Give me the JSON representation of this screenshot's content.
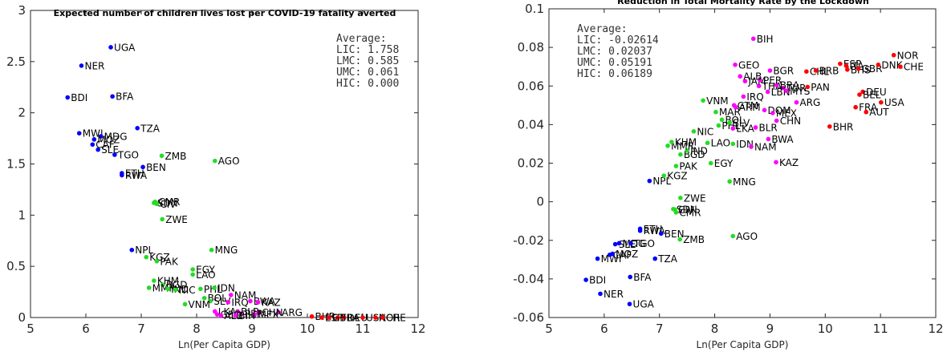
{
  "colors": {
    "LIC": "#0000ff",
    "LMC": "#22dd22",
    "UMC": "#ff00ff",
    "HIC": "#ff0000"
  },
  "chart_data": [
    {
      "type": "scatter",
      "title": "Expected number of children lives lost per COVID-19 fatality averted",
      "xlabel": "Ln(Per Capita GDP)",
      "ylabel": "",
      "xlim": [
        5,
        12
      ],
      "ylim": [
        0,
        3
      ],
      "xticks": [
        "5",
        "6",
        "7",
        "8",
        "9",
        "10",
        "11",
        "12"
      ],
      "yticks": [
        "0",
        "0.5",
        "1",
        "1.5",
        "2",
        "2.5",
        "3"
      ],
      "average": {
        "heading": "Average:",
        "lines": [
          "LIC: 1.758",
          "LMC: 0.585",
          "UMC: 0.061",
          "HIC: 0.000"
        ]
      },
      "points": [
        {
          "label": "UGA",
          "x": 6.45,
          "y": 2.64,
          "group": "LIC"
        },
        {
          "label": "NER",
          "x": 5.92,
          "y": 2.46,
          "group": "LIC"
        },
        {
          "label": "BDI",
          "x": 5.67,
          "y": 2.15,
          "group": "LIC"
        },
        {
          "label": "BFA",
          "x": 6.48,
          "y": 2.16,
          "group": "LIC"
        },
        {
          "label": "TZA",
          "x": 6.93,
          "y": 1.85,
          "group": "LIC"
        },
        {
          "label": "MWI",
          "x": 5.88,
          "y": 1.8,
          "group": "LIC"
        },
        {
          "label": "MDG",
          "x": 6.27,
          "y": 1.77,
          "group": "LIC"
        },
        {
          "label": "MOZ",
          "x": 6.15,
          "y": 1.74,
          "group": "LIC"
        },
        {
          "label": "CAF",
          "x": 6.12,
          "y": 1.69,
          "group": "LIC"
        },
        {
          "label": "SLE",
          "x": 6.22,
          "y": 1.64,
          "group": "LIC"
        },
        {
          "label": "TGO",
          "x": 6.52,
          "y": 1.59,
          "group": "LIC"
        },
        {
          "label": "BEN",
          "x": 7.03,
          "y": 1.47,
          "group": "LIC"
        },
        {
          "label": "ETH",
          "x": 6.65,
          "y": 1.41,
          "group": "LIC"
        },
        {
          "label": "RWA",
          "x": 6.65,
          "y": 1.39,
          "group": "LIC"
        },
        {
          "label": "NPL",
          "x": 6.83,
          "y": 0.66,
          "group": "LIC"
        },
        {
          "label": "ZMB",
          "x": 7.37,
          "y": 1.58,
          "group": "LMC"
        },
        {
          "label": "AGO",
          "x": 8.33,
          "y": 1.53,
          "group": "LMC"
        },
        {
          "label": "CMR",
          "x": 7.25,
          "y": 1.13,
          "group": "LMC"
        },
        {
          "label": "SDN",
          "x": 7.23,
          "y": 1.12,
          "group": "LMC"
        },
        {
          "label": "CIV",
          "x": 7.28,
          "y": 1.11,
          "group": "LMC"
        },
        {
          "label": "ZWE",
          "x": 7.38,
          "y": 0.96,
          "group": "LMC"
        },
        {
          "label": "MNG",
          "x": 8.27,
          "y": 0.66,
          "group": "LMC"
        },
        {
          "label": "KGZ",
          "x": 7.09,
          "y": 0.59,
          "group": "LMC"
        },
        {
          "label": "PAK",
          "x": 7.28,
          "y": 0.55,
          "group": "LMC"
        },
        {
          "label": "EGY",
          "x": 7.93,
          "y": 0.47,
          "group": "LMC"
        },
        {
          "label": "LAO",
          "x": 7.93,
          "y": 0.42,
          "group": "LMC"
        },
        {
          "label": "KHM",
          "x": 7.23,
          "y": 0.36,
          "group": "LMC"
        },
        {
          "label": "BGD",
          "x": 7.39,
          "y": 0.32,
          "group": "LMC"
        },
        {
          "label": "MMR",
          "x": 7.14,
          "y": 0.29,
          "group": "LMC"
        },
        {
          "label": "IND",
          "x": 7.48,
          "y": 0.28,
          "group": "LMC"
        },
        {
          "label": "PHL",
          "x": 8.07,
          "y": 0.28,
          "group": "LMC"
        },
        {
          "label": "IDN",
          "x": 8.32,
          "y": 0.29,
          "group": "LMC"
        },
        {
          "label": "NIC",
          "x": 7.62,
          "y": 0.27,
          "group": "LMC"
        },
        {
          "label": "BOL",
          "x": 8.14,
          "y": 0.19,
          "group": "LMC"
        },
        {
          "label": "SLV",
          "x": 8.25,
          "y": 0.16,
          "group": "LMC"
        },
        {
          "label": "VNM",
          "x": 7.79,
          "y": 0.13,
          "group": "LMC"
        },
        {
          "label": "NAM",
          "x": 8.62,
          "y": 0.22,
          "group": "UMC"
        },
        {
          "label": "BWA",
          "x": 8.97,
          "y": 0.16,
          "group": "UMC"
        },
        {
          "label": "IRQ",
          "x": 8.57,
          "y": 0.15,
          "group": "UMC"
        },
        {
          "label": "KAZ",
          "x": 9.11,
          "y": 0.15,
          "group": "UMC"
        },
        {
          "label": "ARG",
          "x": 9.48,
          "y": 0.05,
          "group": "UMC"
        },
        {
          "label": "LKA",
          "x": 8.33,
          "y": 0.06,
          "group": "UMC"
        },
        {
          "label": "BLR",
          "x": 8.74,
          "y": 0.06,
          "group": "UMC"
        },
        {
          "label": "CHN",
          "x": 9.12,
          "y": 0.05,
          "group": "UMC"
        },
        {
          "label": "PER",
          "x": 8.81,
          "y": 0.04,
          "group": "UMC"
        },
        {
          "label": "GEO",
          "x": 8.37,
          "y": 0.03,
          "group": "UMC"
        },
        {
          "label": "MEX",
          "x": 9.05,
          "y": 0.03,
          "group": "UMC"
        },
        {
          "label": "ALB",
          "x": 8.44,
          "y": 0.02,
          "group": "UMC"
        },
        {
          "label": "BIH",
          "x": 8.7,
          "y": 0.02,
          "group": "UMC"
        },
        {
          "label": "BHR",
          "x": 10.08,
          "y": 0.01,
          "group": "HIC"
        },
        {
          "label": "ESP",
          "x": 10.26,
          "y": 0.0,
          "group": "HIC"
        },
        {
          "label": "FRA",
          "x": 10.55,
          "y": 0.0,
          "group": "HIC"
        },
        {
          "label": "DEU",
          "x": 10.66,
          "y": 0.0,
          "group": "HIC"
        },
        {
          "label": "USA",
          "x": 11.0,
          "y": 0.0,
          "group": "HIC"
        },
        {
          "label": "NOR",
          "x": 11.23,
          "y": 0.0,
          "group": "HIC"
        },
        {
          "label": "CHE",
          "x": 11.36,
          "y": 0.0,
          "group": "HIC"
        },
        {
          "label": "GBR",
          "x": 10.39,
          "y": 0.0,
          "group": "HIC"
        }
      ]
    },
    {
      "type": "scatter",
      "title": "Reduction in Total Mortality Rate by the Lockdown",
      "xlabel": "Ln(Per Capita GDP)",
      "ylabel": "",
      "xlim": [
        5,
        12
      ],
      "ylim": [
        -0.06,
        0.1
      ],
      "xticks": [
        "5",
        "6",
        "7",
        "8",
        "9",
        "10",
        "11",
        "12"
      ],
      "yticks": [
        "-0.06",
        "-0.04",
        "-0.02",
        "0",
        "0.02",
        "0.04",
        "0.06",
        "0.08",
        "0.1"
      ],
      "average": {
        "heading": "Average:",
        "lines": [
          "LIC: -0.02614",
          "LMC: 0.02037",
          "UMC: 0.05191",
          "HIC: 0.06189"
        ]
      },
      "points": [
        {
          "label": "BDI",
          "x": 5.67,
          "y": -0.0405,
          "group": "LIC"
        },
        {
          "label": "NER",
          "x": 5.93,
          "y": -0.0477,
          "group": "LIC"
        },
        {
          "label": "UGA",
          "x": 6.46,
          "y": -0.053,
          "group": "LIC"
        },
        {
          "label": "BFA",
          "x": 6.47,
          "y": -0.039,
          "group": "LIC"
        },
        {
          "label": "MWI",
          "x": 5.88,
          "y": -0.0295,
          "group": "LIC"
        },
        {
          "label": "TZA",
          "x": 6.92,
          "y": -0.0295,
          "group": "LIC"
        },
        {
          "label": "CAF",
          "x": 6.1,
          "y": -0.0275,
          "group": "LIC"
        },
        {
          "label": "MOZ",
          "x": 6.15,
          "y": -0.027,
          "group": "LIC"
        },
        {
          "label": "SLE",
          "x": 6.2,
          "y": -0.022,
          "group": "LIC"
        },
        {
          "label": "MDG",
          "x": 6.27,
          "y": -0.0215,
          "group": "LIC"
        },
        {
          "label": "TGO",
          "x": 6.48,
          "y": -0.0215,
          "group": "LIC"
        },
        {
          "label": "ETH",
          "x": 6.65,
          "y": -0.014,
          "group": "LIC"
        },
        {
          "label": "RWA",
          "x": 6.65,
          "y": -0.015,
          "group": "LIC"
        },
        {
          "label": "BEN",
          "x": 7.03,
          "y": -0.0165,
          "group": "LIC"
        },
        {
          "label": "NPL",
          "x": 6.82,
          "y": 0.0108,
          "group": "LIC"
        },
        {
          "label": "ZMB",
          "x": 7.37,
          "y": -0.0195,
          "group": "LMC"
        },
        {
          "label": "AGO",
          "x": 8.33,
          "y": -0.0178,
          "group": "LMC"
        },
        {
          "label": "SDN",
          "x": 7.25,
          "y": -0.0038,
          "group": "LMC"
        },
        {
          "label": "CIV",
          "x": 7.28,
          "y": -0.004,
          "group": "LMC"
        },
        {
          "label": "CMR",
          "x": 7.3,
          "y": -0.0055,
          "group": "LMC"
        },
        {
          "label": "ZWE",
          "x": 7.38,
          "y": 0.002,
          "group": "LMC"
        },
        {
          "label": "KGZ",
          "x": 7.08,
          "y": 0.0135,
          "group": "LMC"
        },
        {
          "label": "PAK",
          "x": 7.3,
          "y": 0.0185,
          "group": "LMC"
        },
        {
          "label": "EGY",
          "x": 7.93,
          "y": 0.02,
          "group": "LMC"
        },
        {
          "label": "MNG",
          "x": 8.27,
          "y": 0.0105,
          "group": "LMC"
        },
        {
          "label": "BGD",
          "x": 7.38,
          "y": 0.0245,
          "group": "LMC"
        },
        {
          "label": "IND",
          "x": 7.5,
          "y": 0.0265,
          "group": "LMC"
        },
        {
          "label": "MMR",
          "x": 7.15,
          "y": 0.029,
          "group": "LMC"
        },
        {
          "label": "KHM",
          "x": 7.22,
          "y": 0.031,
          "group": "LMC"
        },
        {
          "label": "LAO",
          "x": 7.87,
          "y": 0.0305,
          "group": "LMC"
        },
        {
          "label": "IDN",
          "x": 8.33,
          "y": 0.03,
          "group": "LMC"
        },
        {
          "label": "NIC",
          "x": 7.62,
          "y": 0.0365,
          "group": "LMC"
        },
        {
          "label": "PHL",
          "x": 8.07,
          "y": 0.0395,
          "group": "LMC"
        },
        {
          "label": "BOL",
          "x": 8.13,
          "y": 0.0425,
          "group": "LMC"
        },
        {
          "label": "SLV",
          "x": 8.27,
          "y": 0.041,
          "group": "LMC"
        },
        {
          "label": "MAR",
          "x": 8.02,
          "y": 0.0465,
          "group": "LMC"
        },
        {
          "label": "VNM",
          "x": 7.79,
          "y": 0.0525,
          "group": "LMC"
        },
        {
          "label": "NAM",
          "x": 8.66,
          "y": 0.0285,
          "group": "UMC"
        },
        {
          "label": "BWA",
          "x": 8.97,
          "y": 0.0325,
          "group": "UMC"
        },
        {
          "label": "KAZ",
          "x": 9.11,
          "y": 0.0205,
          "group": "UMC"
        },
        {
          "label": "LKA",
          "x": 8.33,
          "y": 0.038,
          "group": "UMC"
        },
        {
          "label": "BLR",
          "x": 8.74,
          "y": 0.0385,
          "group": "UMC"
        },
        {
          "label": "CHN",
          "x": 9.12,
          "y": 0.042,
          "group": "UMC"
        },
        {
          "label": "GTM",
          "x": 8.35,
          "y": 0.05,
          "group": "UMC"
        },
        {
          "label": "ARM",
          "x": 8.38,
          "y": 0.049,
          "group": "UMC"
        },
        {
          "label": "DOM",
          "x": 8.9,
          "y": 0.0475,
          "group": "UMC"
        },
        {
          "label": "MEX",
          "x": 9.05,
          "y": 0.046,
          "group": "UMC"
        },
        {
          "label": "ARG",
          "x": 9.48,
          "y": 0.0515,
          "group": "UMC"
        },
        {
          "label": "IRQ",
          "x": 8.52,
          "y": 0.0545,
          "group": "UMC"
        },
        {
          "label": "LBN",
          "x": 8.96,
          "y": 0.057,
          "group": "UMC"
        },
        {
          "label": "MYS",
          "x": 9.3,
          "y": 0.0575,
          "group": "UMC"
        },
        {
          "label": "TUR",
          "x": 9.24,
          "y": 0.059,
          "group": "UMC"
        },
        {
          "label": "THA",
          "x": 8.8,
          "y": 0.06,
          "group": "UMC"
        },
        {
          "label": "BRA",
          "x": 9.12,
          "y": 0.0605,
          "group": "UMC"
        },
        {
          "label": "JAM",
          "x": 8.55,
          "y": 0.0625,
          "group": "UMC"
        },
        {
          "label": "PER",
          "x": 8.82,
          "y": 0.063,
          "group": "UMC"
        },
        {
          "label": "ALB",
          "x": 8.46,
          "y": 0.065,
          "group": "UMC"
        },
        {
          "label": "GEO",
          "x": 8.37,
          "y": 0.071,
          "group": "UMC"
        },
        {
          "label": "BGR",
          "x": 9.0,
          "y": 0.068,
          "group": "UMC"
        },
        {
          "label": "BIH",
          "x": 8.7,
          "y": 0.0845,
          "group": "UMC"
        },
        {
          "label": "CHL",
          "x": 9.66,
          "y": 0.0675,
          "group": "HIC"
        },
        {
          "label": "PAN",
          "x": 9.68,
          "y": 0.0595,
          "group": "HIC"
        },
        {
          "label": "BRB",
          "x": 9.83,
          "y": 0.068,
          "group": "HIC"
        },
        {
          "label": "ESP",
          "x": 10.27,
          "y": 0.0715,
          "group": "HIC"
        },
        {
          "label": "ITA",
          "x": 10.38,
          "y": 0.0705,
          "group": "HIC"
        },
        {
          "label": "BHS",
          "x": 10.4,
          "y": 0.0685,
          "group": "HIC"
        },
        {
          "label": "GBR",
          "x": 10.6,
          "y": 0.069,
          "group": "HIC"
        },
        {
          "label": "DNK",
          "x": 10.96,
          "y": 0.071,
          "group": "HIC"
        },
        {
          "label": "NOR",
          "x": 11.24,
          "y": 0.076,
          "group": "HIC"
        },
        {
          "label": "CHE",
          "x": 11.36,
          "y": 0.07,
          "group": "HIC"
        },
        {
          "label": "DEU",
          "x": 10.68,
          "y": 0.057,
          "group": "HIC"
        },
        {
          "label": "BEL",
          "x": 10.62,
          "y": 0.0555,
          "group": "HIC"
        },
        {
          "label": "USA",
          "x": 11.01,
          "y": 0.0515,
          "group": "HIC"
        },
        {
          "label": "FRA",
          "x": 10.55,
          "y": 0.049,
          "group": "HIC"
        },
        {
          "label": "AUT",
          "x": 10.74,
          "y": 0.0465,
          "group": "HIC"
        },
        {
          "label": "BHR",
          "x": 10.08,
          "y": 0.039,
          "group": "HIC"
        }
      ]
    }
  ]
}
